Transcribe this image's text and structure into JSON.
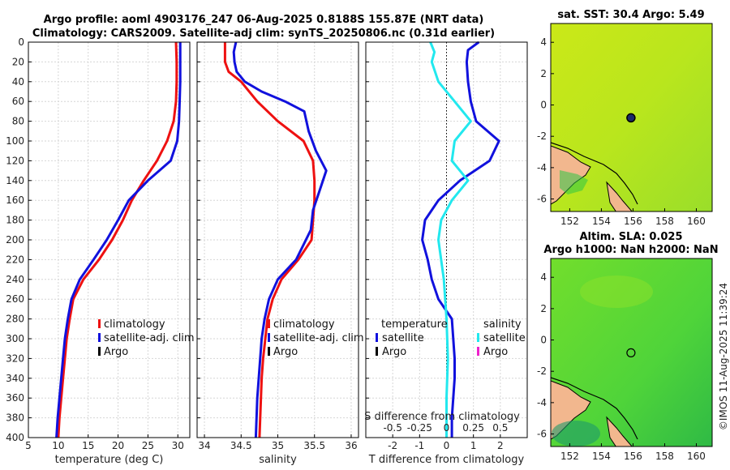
{
  "header": {
    "title_line1": "Argo profile: aoml 4903176_247 06-Aug-2025 0.8188S 155.87E (NRT data)",
    "title_line2": "Climatology: CARS2009. Satellite-adj clim: synTS_20250806.nc (0.31d earlier)"
  },
  "footer": {
    "credit": "©IMOS 11-Aug-2025 11:39:24"
  },
  "colors": {
    "climatology": "#ee1111",
    "satellite": "#1111dd",
    "argo": "#000000",
    "sat_diff_s": "#22e8ee",
    "argo_diff_s": "#ee22cc",
    "land": "#f2b78e"
  },
  "chart_data": [
    {
      "id": "temperature",
      "type": "line",
      "xlabel": "temperature (deg C)",
      "xlim": [
        5,
        32
      ],
      "xticks": [
        "5",
        "10",
        "15",
        "20",
        "25",
        "30"
      ],
      "ylim": [
        0,
        400
      ],
      "yticks": [
        "0",
        "20",
        "40",
        "60",
        "80",
        "100",
        "120",
        "140",
        "160",
        "180",
        "200",
        "220",
        "240",
        "260",
        "280",
        "300",
        "320",
        "340",
        "360",
        "380",
        "400"
      ],
      "legend": [
        "climatology",
        "satellite-adj. clim",
        "Argo"
      ],
      "series": [
        {
          "name": "climatology",
          "color": "#ee1111",
          "points": [
            [
              29.7,
              0
            ],
            [
              29.8,
              20
            ],
            [
              29.8,
              40
            ],
            [
              29.7,
              60
            ],
            [
              29.3,
              80
            ],
            [
              28.2,
              100
            ],
            [
              26.5,
              120
            ],
            [
              24.3,
              140
            ],
            [
              22.3,
              160
            ],
            [
              20.8,
              180
            ],
            [
              19.0,
              200
            ],
            [
              16.8,
              220
            ],
            [
              14.2,
              240
            ],
            [
              12.5,
              260
            ],
            [
              11.9,
              280
            ],
            [
              11.4,
              300
            ],
            [
              11.1,
              320
            ],
            [
              10.8,
              340
            ],
            [
              10.5,
              360
            ],
            [
              10.2,
              380
            ],
            [
              10.0,
              400
            ]
          ]
        },
        {
          "name": "satellite-adj. clim",
          "color": "#1111dd",
          "points": [
            [
              30.4,
              0
            ],
            [
              30.4,
              20
            ],
            [
              30.4,
              40
            ],
            [
              30.3,
              60
            ],
            [
              30.2,
              80
            ],
            [
              29.9,
              100
            ],
            [
              28.8,
              120
            ],
            [
              25.0,
              140
            ],
            [
              21.8,
              160
            ],
            [
              20.0,
              180
            ],
            [
              18.1,
              200
            ],
            [
              15.9,
              220
            ],
            [
              13.6,
              240
            ],
            [
              12.2,
              260
            ],
            [
              11.6,
              280
            ],
            [
              11.1,
              300
            ],
            [
              10.8,
              320
            ],
            [
              10.5,
              340
            ],
            [
              10.2,
              360
            ],
            [
              9.9,
              380
            ],
            [
              9.7,
              400
            ]
          ]
        }
      ]
    },
    {
      "id": "salinity",
      "type": "line",
      "xlabel": "salinity",
      "xlim": [
        33.9,
        36.1
      ],
      "xticks": [
        "34",
        "34.5",
        "35",
        "35.5",
        "36"
      ],
      "ylim": [
        0,
        400
      ],
      "legend": [
        "climatology",
        "satellite-adj. clim",
        "Argo"
      ],
      "series": [
        {
          "name": "climatology",
          "color": "#ee1111",
          "points": [
            [
              34.28,
              0
            ],
            [
              34.28,
              20
            ],
            [
              34.33,
              30
            ],
            [
              34.5,
              40
            ],
            [
              34.72,
              60
            ],
            [
              35.0,
              80
            ],
            [
              35.35,
              100
            ],
            [
              35.48,
              120
            ],
            [
              35.5,
              140
            ],
            [
              35.5,
              160
            ],
            [
              35.48,
              180
            ],
            [
              35.46,
              200
            ],
            [
              35.28,
              220
            ],
            [
              35.05,
              240
            ],
            [
              34.93,
              260
            ],
            [
              34.86,
              280
            ],
            [
              34.83,
              300
            ],
            [
              34.8,
              320
            ],
            [
              34.78,
              340
            ],
            [
              34.77,
              360
            ],
            [
              34.76,
              380
            ],
            [
              34.75,
              400
            ]
          ]
        },
        {
          "name": "satellite-adj. clim",
          "color": "#1111dd",
          "points": [
            [
              34.43,
              0
            ],
            [
              34.4,
              10
            ],
            [
              34.41,
              20
            ],
            [
              34.44,
              30
            ],
            [
              34.55,
              40
            ],
            [
              34.78,
              50
            ],
            [
              35.1,
              60
            ],
            [
              35.36,
              70
            ],
            [
              35.42,
              90
            ],
            [
              35.52,
              110
            ],
            [
              35.66,
              130
            ],
            [
              35.57,
              150
            ],
            [
              35.48,
              170
            ],
            [
              35.45,
              190
            ],
            [
              35.25,
              220
            ],
            [
              35.0,
              240
            ],
            [
              34.88,
              260
            ],
            [
              34.82,
              280
            ],
            [
              34.78,
              300
            ],
            [
              34.76,
              320
            ],
            [
              34.74,
              340
            ],
            [
              34.72,
              360
            ],
            [
              34.71,
              380
            ],
            [
              34.7,
              400
            ]
          ]
        }
      ]
    },
    {
      "id": "difference",
      "type": "line",
      "xlabel": "T difference from climatology",
      "xlim": [
        -3,
        3
      ],
      "xticks": [
        "-2",
        "-1",
        "0",
        "1",
        "2"
      ],
      "top_axis_label": "S difference from climatology",
      "top_ticks": [
        "-0.5",
        "-0.25",
        "0",
        "0.25",
        "0.5"
      ],
      "ylim": [
        0,
        400
      ],
      "legend_groups": {
        "temperature": {
          "title": "temperature",
          "items": [
            "satellite",
            "Argo"
          ]
        },
        "salinity": {
          "title": "salinity",
          "items": [
            "satellite",
            "Argo"
          ]
        }
      },
      "series": [
        {
          "name": "temperature satellite",
          "color": "#1111dd",
          "points": [
            [
              1.2,
              0
            ],
            [
              0.8,
              8
            ],
            [
              0.75,
              20
            ],
            [
              0.8,
              40
            ],
            [
              0.9,
              60
            ],
            [
              1.1,
              80
            ],
            [
              1.95,
              100
            ],
            [
              1.6,
              120
            ],
            [
              0.5,
              140
            ],
            [
              -0.3,
              160
            ],
            [
              -0.8,
              180
            ],
            [
              -0.9,
              200
            ],
            [
              -0.7,
              220
            ],
            [
              -0.55,
              240
            ],
            [
              -0.3,
              260
            ],
            [
              0.2,
              280
            ],
            [
              0.25,
              300
            ],
            [
              0.3,
              320
            ],
            [
              0.3,
              340
            ],
            [
              0.25,
              360
            ],
            [
              0.2,
              380
            ],
            [
              0.2,
              400
            ]
          ]
        },
        {
          "name": "salinity satellite",
          "color": "#22e8ee",
          "points": [
            [
              -0.6,
              0
            ],
            [
              -0.45,
              10
            ],
            [
              -0.55,
              20
            ],
            [
              -0.3,
              40
            ],
            [
              0.3,
              60
            ],
            [
              0.9,
              80
            ],
            [
              0.3,
              100
            ],
            [
              0.2,
              120
            ],
            [
              0.8,
              140
            ],
            [
              0.2,
              160
            ],
            [
              -0.2,
              180
            ],
            [
              -0.3,
              200
            ],
            [
              -0.1,
              240
            ],
            [
              0.0,
              280
            ],
            [
              0.05,
              320
            ],
            [
              0.0,
              360
            ],
            [
              0.0,
              400
            ]
          ]
        }
      ]
    },
    {
      "id": "sst_map",
      "type": "heatmap",
      "title": "sat. SST: 30.4 Argo: 5.49",
      "xticks": [
        "152",
        "154",
        "156",
        "158",
        "160"
      ],
      "yticks": [
        "4",
        "2",
        "0",
        "-2",
        "-4",
        "-6"
      ],
      "xlim": [
        150.8,
        161.0
      ],
      "ylim": [
        -6.8,
        5.2
      ],
      "float_position": {
        "lon": 155.87,
        "lat": -0.82
      }
    },
    {
      "id": "sla_map",
      "type": "heatmap",
      "title_line1": "Altim. SLA: 0.025",
      "title_line2": "Argo h1000: NaN h2000: NaN",
      "xticks": [
        "152",
        "154",
        "156",
        "158",
        "160"
      ],
      "yticks": [
        "4",
        "2",
        "0",
        "-2",
        "-4",
        "-6"
      ],
      "xlim": [
        150.8,
        161.0
      ],
      "ylim": [
        -6.8,
        5.2
      ],
      "float_position": {
        "lon": 155.87,
        "lat": -0.82
      }
    }
  ]
}
